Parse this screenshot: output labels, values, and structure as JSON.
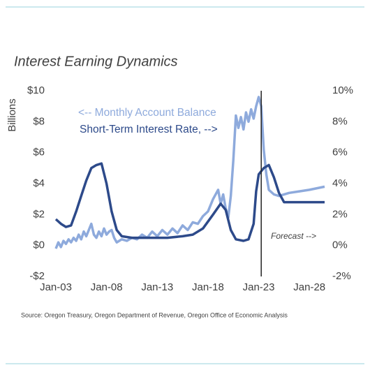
{
  "chart_data": {
    "type": "line",
    "title": "Interest Earning Dynamics",
    "y_label": "Billions",
    "source": "Source: Oregon Treasury, Oregon Department of Revenue, Oregon Office of Economic Analysis",
    "annotation": "Forecast -->",
    "forecast_start": "2023-04",
    "xlim": [
      "2003-01",
      "2029-07"
    ],
    "xticks": [
      {
        "value": "2003-01",
        "label": "Jan-03"
      },
      {
        "value": "2008-01",
        "label": "Jan-08"
      },
      {
        "value": "2013-01",
        "label": "Jan-13"
      },
      {
        "value": "2018-01",
        "label": "Jan-18"
      },
      {
        "value": "2023-01",
        "label": "Jan-23"
      },
      {
        "value": "2028-01",
        "label": "Jan-28"
      }
    ],
    "ylim": [
      -2,
      10
    ],
    "yticks": [
      {
        "value": -2,
        "label": "-$2"
      },
      {
        "value": 0,
        "label": "$0"
      },
      {
        "value": 2,
        "label": "$2"
      },
      {
        "value": 4,
        "label": "$4"
      },
      {
        "value": 6,
        "label": "$6"
      },
      {
        "value": 8,
        "label": "$8"
      },
      {
        "value": 10,
        "label": "$10"
      }
    ],
    "y2lim": [
      -2,
      10
    ],
    "y2ticks": [
      {
        "value": -2,
        "label": "-2%"
      },
      {
        "value": 0,
        "label": "0%"
      },
      {
        "value": 2,
        "label": "2%"
      },
      {
        "value": 4,
        "label": "4%"
      },
      {
        "value": 6,
        "label": "6%"
      },
      {
        "value": 8,
        "label": "8%"
      },
      {
        "value": 10,
        "label": "10%"
      }
    ],
    "grid": false,
    "series": [
      {
        "name": "<-- Monthly Account Balance",
        "color": "#8eaadc",
        "axis": "y",
        "x": [
          "2003-01",
          "2003-04",
          "2003-07",
          "2003-10",
          "2004-01",
          "2004-04",
          "2004-07",
          "2004-10",
          "2005-01",
          "2005-04",
          "2005-07",
          "2005-10",
          "2006-01",
          "2006-04",
          "2006-07",
          "2006-10",
          "2007-01",
          "2007-04",
          "2007-07",
          "2007-10",
          "2008-01",
          "2008-04",
          "2008-07",
          "2008-10",
          "2009-01",
          "2009-07",
          "2010-01",
          "2010-07",
          "2011-01",
          "2011-07",
          "2012-01",
          "2012-07",
          "2013-01",
          "2013-07",
          "2014-01",
          "2014-07",
          "2015-01",
          "2015-07",
          "2016-01",
          "2016-07",
          "2017-01",
          "2017-07",
          "2018-01",
          "2018-07",
          "2019-01",
          "2019-04",
          "2019-07",
          "2019-10",
          "2020-01",
          "2020-04",
          "2020-07",
          "2020-10",
          "2021-01",
          "2021-04",
          "2021-07",
          "2021-10",
          "2022-01",
          "2022-04",
          "2022-07",
          "2022-10",
          "2023-01",
          "2023-04",
          "2023-07",
          "2023-10",
          "2024-01",
          "2024-07",
          "2025-01",
          "2026-01",
          "2027-01",
          "2028-01",
          "2029-07"
        ],
        "values": [
          -0.2,
          0.2,
          -0.1,
          0.3,
          0.1,
          0.4,
          0.2,
          0.5,
          0.3,
          0.7,
          0.4,
          0.9,
          0.6,
          1.0,
          1.4,
          0.7,
          0.5,
          0.9,
          0.6,
          1.1,
          0.7,
          0.9,
          1.0,
          0.5,
          0.2,
          0.4,
          0.3,
          0.5,
          0.4,
          0.7,
          0.5,
          0.9,
          0.6,
          1.0,
          0.7,
          1.1,
          0.8,
          1.3,
          1.0,
          1.5,
          1.4,
          1.9,
          2.2,
          3.0,
          3.6,
          2.7,
          3.3,
          2.4,
          1.8,
          3.2,
          5.5,
          8.4,
          7.6,
          8.3,
          7.5,
          8.6,
          8.0,
          8.8,
          8.2,
          9.0,
          9.6,
          9.0,
          6.2,
          4.6,
          3.6,
          3.3,
          3.2,
          3.4,
          3.5,
          3.6,
          3.8
        ]
      },
      {
        "name": "Short-Term Interest Rate, -->",
        "color": "#2d4a8a",
        "axis": "y2",
        "x": [
          "2003-01",
          "2003-07",
          "2004-01",
          "2004-07",
          "2005-01",
          "2005-07",
          "2006-01",
          "2006-07",
          "2007-01",
          "2007-07",
          "2008-01",
          "2008-07",
          "2009-01",
          "2009-07",
          "2010-07",
          "2012-01",
          "2014-01",
          "2015-07",
          "2016-07",
          "2017-07",
          "2018-07",
          "2019-04",
          "2019-10",
          "2020-04",
          "2020-10",
          "2021-07",
          "2022-01",
          "2022-07",
          "2022-10",
          "2023-01",
          "2023-07",
          "2024-01",
          "2024-07",
          "2025-01",
          "2025-07",
          "2026-07",
          "2027-07",
          "2029-07"
        ],
        "values": [
          1.7,
          1.4,
          1.2,
          1.3,
          2.2,
          3.2,
          4.2,
          5.0,
          5.2,
          5.3,
          4.0,
          2.2,
          1.0,
          0.6,
          0.5,
          0.5,
          0.5,
          0.6,
          0.7,
          1.1,
          2.0,
          2.7,
          2.3,
          1.0,
          0.4,
          0.3,
          0.4,
          1.4,
          3.5,
          4.6,
          5.0,
          5.2,
          4.4,
          3.4,
          2.8,
          2.8,
          2.8,
          2.8
        ]
      }
    ]
  }
}
